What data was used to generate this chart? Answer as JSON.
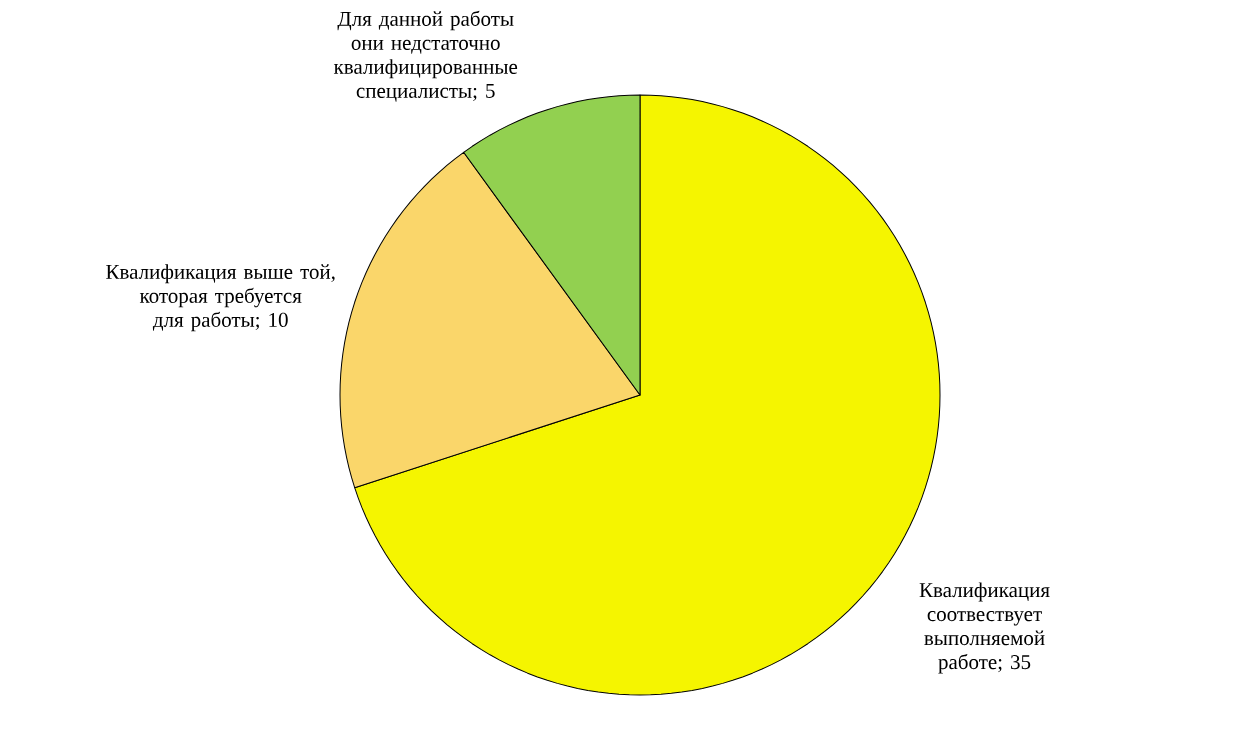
{
  "chart_data": {
    "type": "pie",
    "categories": [
      "Квалификация соотвествует выполняемой работе",
      "Квалификация выше той, которая требуется для работы",
      "Для данной работы они недстаточно квалифицированные специалисты"
    ],
    "values": [
      35,
      10,
      5
    ],
    "value_labels": [
      "; 35",
      "; 10",
      "; 5"
    ],
    "colors": [
      "#f5f500",
      "#fad66a",
      "#92d050"
    ]
  }
}
